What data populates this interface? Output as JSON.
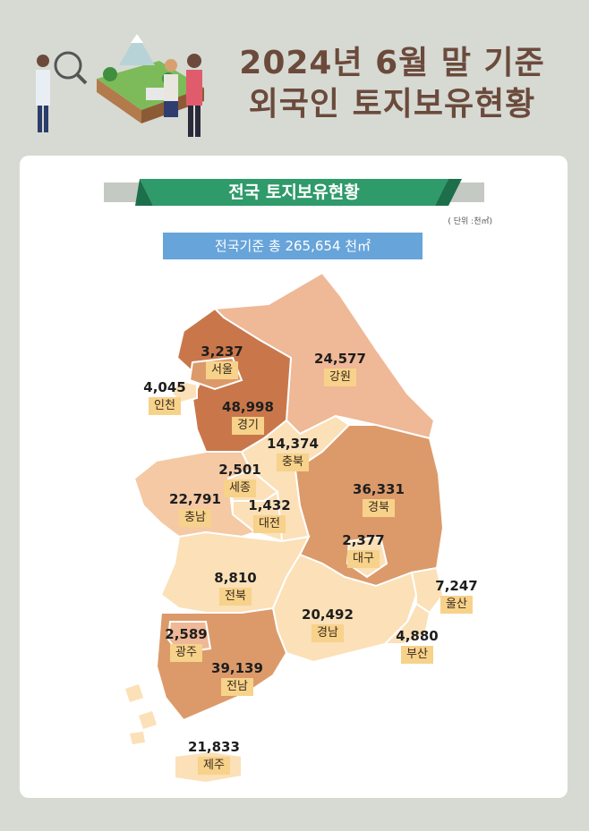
{
  "header": {
    "title_line1": "2024년 6월 말 기준",
    "title_line2": "외국인 토지보유현황"
  },
  "banner": {
    "title": "전국 토지보유현황"
  },
  "unit": "( 단위 :천㎡)",
  "total": "전국기준 총 265,654 천㎡",
  "colors": {
    "dark": "#c9774a",
    "medium": "#dc9a6a",
    "light": "#efb896",
    "pale": "#fbe0b8",
    "label_bg": "#f7d28a",
    "banner": "#2f9a6a",
    "total_bg": "#67a4d9"
  },
  "regions": [
    {
      "id": "seoul",
      "name": "서울",
      "value": "3,237"
    },
    {
      "id": "incheon",
      "name": "인천",
      "value": "4,045"
    },
    {
      "id": "gyeonggi",
      "name": "경기",
      "value": "48,998"
    },
    {
      "id": "gangwon",
      "name": "강원",
      "value": "24,577"
    },
    {
      "id": "chungbuk",
      "name": "충북",
      "value": "14,374"
    },
    {
      "id": "sejong",
      "name": "세종",
      "value": "2,501"
    },
    {
      "id": "chungnam",
      "name": "충남",
      "value": "22,791"
    },
    {
      "id": "daejeon",
      "name": "대전",
      "value": "1,432"
    },
    {
      "id": "gyeongbuk",
      "name": "경북",
      "value": "36,331"
    },
    {
      "id": "daegu",
      "name": "대구",
      "value": "2,377"
    },
    {
      "id": "ulsan",
      "name": "울산",
      "value": "7,247"
    },
    {
      "id": "jeonbuk",
      "name": "전북",
      "value": "8,810"
    },
    {
      "id": "gyeongnam",
      "name": "경남",
      "value": "20,492"
    },
    {
      "id": "busan",
      "name": "부산",
      "value": "4,880"
    },
    {
      "id": "gwangju",
      "name": "광주",
      "value": "2,589"
    },
    {
      "id": "jeonnam",
      "name": "전남",
      "value": "39,139"
    },
    {
      "id": "jeju",
      "name": "제주",
      "value": "21,833"
    }
  ]
}
